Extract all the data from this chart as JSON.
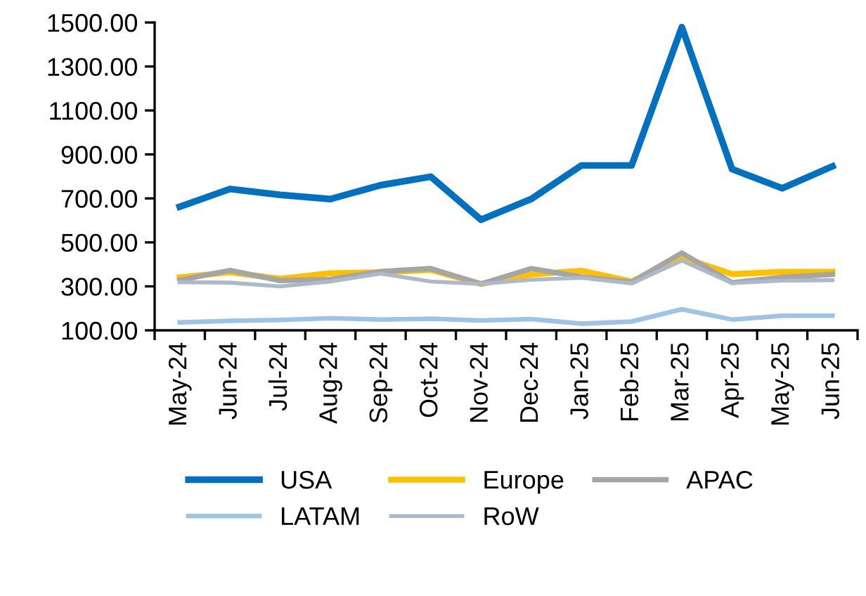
{
  "chart_data": {
    "type": "line",
    "categories": [
      "May-24",
      "Jun-24",
      "Jul-24",
      "Aug-24",
      "Sep-24",
      "Oct-24",
      "Nov-24",
      "Dec-24",
      "Jan-25",
      "Feb-25",
      "Mar-25",
      "Apr-25",
      "May-25",
      "Jun-25"
    ],
    "series": [
      {
        "name": "USA",
        "color": "#0070c0",
        "values": [
          662,
          743,
          716,
          697,
          760,
          799,
          603,
          697,
          850,
          850,
          1479,
          833,
          746,
          846
        ]
      },
      {
        "name": "Europe",
        "color": "#ffc000",
        "values": [
          341,
          364,
          334,
          360,
          364,
          375,
          311,
          354,
          371,
          322,
          432,
          356,
          366,
          366
        ]
      },
      {
        "name": "APAC",
        "color": "#a5a5a5",
        "values": [
          328,
          373,
          326,
          332,
          368,
          381,
          311,
          381,
          343,
          319,
          452,
          317,
          341,
          354
        ]
      },
      {
        "name": "LATAM",
        "color": "#9dc3e6",
        "values": [
          136,
          143,
          147,
          155,
          149,
          153,
          145,
          151,
          130,
          140,
          196,
          149,
          166,
          166
        ]
      },
      {
        "name": "RoW",
        "color": "#adb9ca",
        "values": [
          319,
          317,
          300,
          322,
          358,
          322,
          311,
          330,
          339,
          313,
          417,
          315,
          326,
          328
        ]
      }
    ],
    "ylim": [
      100,
      1500
    ],
    "yticks": [
      {
        "value": 100,
        "label": "100.00"
      },
      {
        "value": 300,
        "label": "300.00"
      },
      {
        "value": 500,
        "label": "500.00"
      },
      {
        "value": 700,
        "label": "700.00"
      },
      {
        "value": 900,
        "label": "900.00"
      },
      {
        "value": 1100,
        "label": "1100.00"
      },
      {
        "value": 1300,
        "label": "1300.00"
      },
      {
        "value": 1500,
        "label": "1500.00"
      }
    ],
    "grid": false,
    "legend": "bottom",
    "marker": "none",
    "line_style": "solid"
  }
}
